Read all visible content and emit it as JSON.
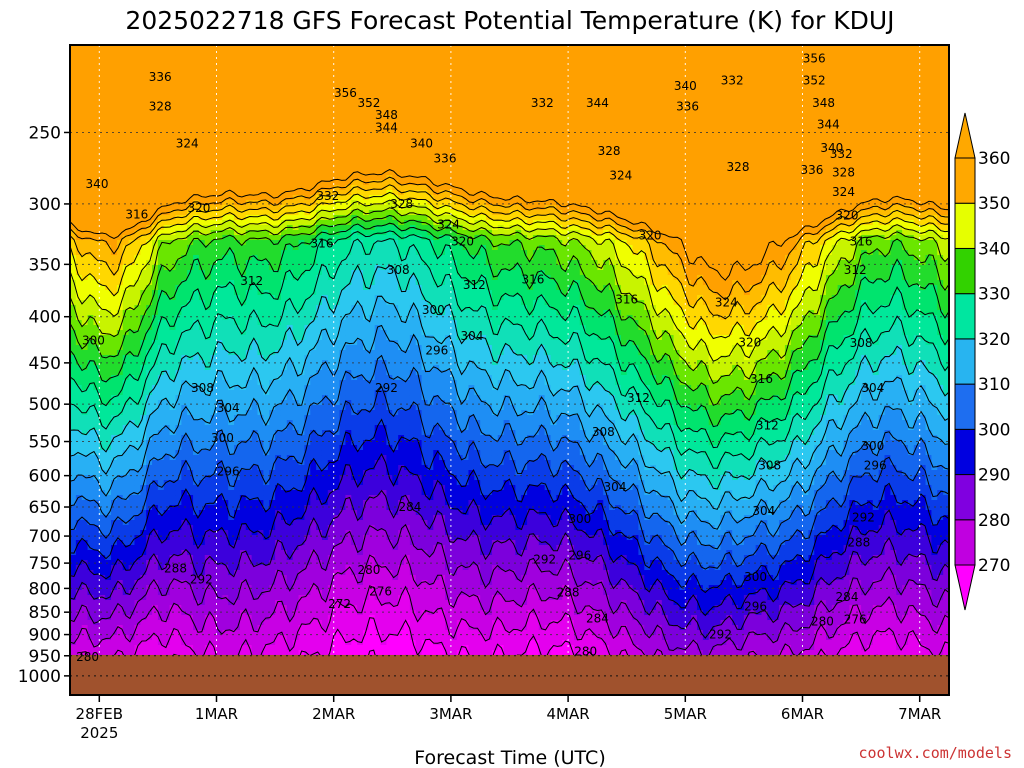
{
  "chart_data": {
    "type": "contour",
    "title": "2025022718 GFS Forecast Potential Temperature (K) for KDUJ",
    "xlabel": "Forecast Time (UTC)",
    "ylabel": "",
    "x_ticks": [
      "28FEB",
      "1MAR",
      "2MAR",
      "3MAR",
      "4MAR",
      "5MAR",
      "6MAR",
      "7MAR"
    ],
    "x_tick_year": "2025",
    "x_range_days": [
      -0.25,
      7.25
    ],
    "y_ticks": [
      250,
      300,
      350,
      400,
      450,
      500,
      550,
      600,
      650,
      700,
      750,
      800,
      850,
      900,
      950,
      1000
    ],
    "y_range": [
      1050,
      200
    ],
    "y_scale": "log-pressure",
    "surface_pressure": 948,
    "grid": true,
    "colorbar": {
      "levels": [
        270,
        280,
        290,
        300,
        310,
        320,
        330,
        340,
        350,
        360
      ],
      "colors": [
        "#ff00ff",
        "#c000e0",
        "#8000e0",
        "#0000e0",
        "#1e6ef0",
        "#28b4f0",
        "#00e6a0",
        "#32d200",
        "#e6ff00",
        "#ffa800"
      ]
    },
    "band_colors": [
      {
        "max": 276,
        "color": "#ff00ff"
      },
      {
        "max": 280,
        "color": "#e400ee"
      },
      {
        "max": 284,
        "color": "#c800e4"
      },
      {
        "max": 288,
        "color": "#a000de"
      },
      {
        "max": 292,
        "color": "#7c00dc"
      },
      {
        "max": 296,
        "color": "#3c00dc"
      },
      {
        "max": 300,
        "color": "#0000e0"
      },
      {
        "max": 304,
        "color": "#0a3ce8"
      },
      {
        "max": 308,
        "color": "#1466ee"
      },
      {
        "max": 312,
        "color": "#1e8ef4"
      },
      {
        "max": 316,
        "color": "#28b0f4"
      },
      {
        "max": 320,
        "color": "#2cc8f0"
      },
      {
        "max": 324,
        "color": "#10e0b8"
      },
      {
        "max": 328,
        "color": "#00e89a"
      },
      {
        "max": 332,
        "color": "#00e46e"
      },
      {
        "max": 336,
        "color": "#22dc2c"
      },
      {
        "max": 340,
        "color": "#6ae600"
      },
      {
        "max": 344,
        "color": "#c8f400"
      },
      {
        "max": 348,
        "color": "#f0ff00"
      },
      {
        "max": 352,
        "color": "#ffd800"
      },
      {
        "max": 356,
        "color": "#ffbc00"
      },
      {
        "max": 999,
        "color": "#ffa000"
      }
    ],
    "contour_labels": [
      {
        "v": "336",
        "d": 0.52,
        "p": 217
      },
      {
        "v": "328",
        "d": 0.52,
        "p": 234
      },
      {
        "v": "324",
        "d": 0.75,
        "p": 257
      },
      {
        "v": "340",
        "d": -0.02,
        "p": 285
      },
      {
        "v": "316",
        "d": 0.32,
        "p": 308
      },
      {
        "v": "320",
        "d": 0.85,
        "p": 303
      },
      {
        "v": "356",
        "d": 2.1,
        "p": 226
      },
      {
        "v": "352",
        "d": 2.3,
        "p": 232
      },
      {
        "v": "348",
        "d": 2.45,
        "p": 239
      },
      {
        "v": "344",
        "d": 2.45,
        "p": 247
      },
      {
        "v": "340",
        "d": 2.75,
        "p": 257
      },
      {
        "v": "336",
        "d": 2.95,
        "p": 267
      },
      {
        "v": "332",
        "d": 1.95,
        "p": 294
      },
      {
        "v": "328",
        "d": 2.58,
        "p": 300
      },
      {
        "v": "324",
        "d": 2.98,
        "p": 316
      },
      {
        "v": "320",
        "d": 3.1,
        "p": 330
      },
      {
        "v": "316",
        "d": 1.9,
        "p": 332
      },
      {
        "v": "312",
        "d": 1.3,
        "p": 365
      },
      {
        "v": "308",
        "d": 2.55,
        "p": 355
      },
      {
        "v": "312",
        "d": 3.2,
        "p": 369
      },
      {
        "v": "316",
        "d": 3.7,
        "p": 364
      },
      {
        "v": "316",
        "d": 4.5,
        "p": 383
      },
      {
        "v": "332",
        "d": 3.78,
        "p": 232
      },
      {
        "v": "344",
        "d": 4.25,
        "p": 232
      },
      {
        "v": "328",
        "d": 4.35,
        "p": 262
      },
      {
        "v": "324",
        "d": 4.45,
        "p": 279
      },
      {
        "v": "320",
        "d": 4.7,
        "p": 325
      },
      {
        "v": "340",
        "d": 5.0,
        "p": 222
      },
      {
        "v": "336",
        "d": 5.02,
        "p": 234
      },
      {
        "v": "332",
        "d": 5.4,
        "p": 219
      },
      {
        "v": "328",
        "d": 5.45,
        "p": 273
      },
      {
        "v": "324",
        "d": 5.35,
        "p": 386
      },
      {
        "v": "320",
        "d": 5.55,
        "p": 427
      },
      {
        "v": "356",
        "d": 6.1,
        "p": 207
      },
      {
        "v": "352",
        "d": 6.1,
        "p": 219
      },
      {
        "v": "348",
        "d": 6.18,
        "p": 232
      },
      {
        "v": "344",
        "d": 6.22,
        "p": 245
      },
      {
        "v": "340",
        "d": 6.25,
        "p": 260
      },
      {
        "v": "336",
        "d": 6.08,
        "p": 275
      },
      {
        "v": "332",
        "d": 6.33,
        "p": 264
      },
      {
        "v": "328",
        "d": 6.35,
        "p": 277
      },
      {
        "v": "324",
        "d": 6.35,
        "p": 291
      },
      {
        "v": "320",
        "d": 6.38,
        "p": 309
      },
      {
        "v": "316",
        "d": 6.5,
        "p": 330
      },
      {
        "v": "312",
        "d": 6.45,
        "p": 355
      },
      {
        "v": "308",
        "d": 6.5,
        "p": 428
      },
      {
        "v": "304",
        "d": 6.6,
        "p": 480
      },
      {
        "v": "300",
        "d": 6.6,
        "p": 556
      },
      {
        "v": "296",
        "d": 6.62,
        "p": 585
      },
      {
        "v": "292",
        "d": 6.52,
        "p": 668
      },
      {
        "v": "288",
        "d": 6.48,
        "p": 712
      },
      {
        "v": "284",
        "d": 6.38,
        "p": 818
      },
      {
        "v": "280",
        "d": 6.17,
        "p": 870
      },
      {
        "v": "276",
        "d": 6.45,
        "p": 866
      },
      {
        "v": "300",
        "d": -0.05,
        "p": 425
      },
      {
        "v": "308",
        "d": 0.88,
        "p": 480
      },
      {
        "v": "304",
        "d": 1.1,
        "p": 505
      },
      {
        "v": "300",
        "d": 1.05,
        "p": 545
      },
      {
        "v": "296",
        "d": 1.1,
        "p": 594
      },
      {
        "v": "288",
        "d": 0.65,
        "p": 760
      },
      {
        "v": "292",
        "d": 0.87,
        "p": 782
      },
      {
        "v": "300",
        "d": 2.85,
        "p": 393
      },
      {
        "v": "304",
        "d": 3.18,
        "p": 420
      },
      {
        "v": "296",
        "d": 2.88,
        "p": 436
      },
      {
        "v": "292",
        "d": 2.45,
        "p": 480
      },
      {
        "v": "284",
        "d": 2.65,
        "p": 650
      },
      {
        "v": "280",
        "d": 2.3,
        "p": 763
      },
      {
        "v": "276",
        "d": 2.4,
        "p": 806
      },
      {
        "v": "272",
        "d": 2.05,
        "p": 832
      },
      {
        "v": "312",
        "d": 4.6,
        "p": 492
      },
      {
        "v": "308",
        "d": 4.3,
        "p": 537
      },
      {
        "v": "304",
        "d": 4.4,
        "p": 618
      },
      {
        "v": "300",
        "d": 4.1,
        "p": 670
      },
      {
        "v": "296",
        "d": 4.1,
        "p": 736
      },
      {
        "v": "292",
        "d": 3.8,
        "p": 743
      },
      {
        "v": "288",
        "d": 4.0,
        "p": 808
      },
      {
        "v": "284",
        "d": 4.25,
        "p": 864
      },
      {
        "v": "280",
        "d": 4.15,
        "p": 940
      },
      {
        "v": "316",
        "d": 5.65,
        "p": 469
      },
      {
        "v": "312",
        "d": 5.7,
        "p": 528
      },
      {
        "v": "308",
        "d": 5.72,
        "p": 585
      },
      {
        "v": "304",
        "d": 5.67,
        "p": 657
      },
      {
        "v": "300",
        "d": 5.6,
        "p": 777
      },
      {
        "v": "296",
        "d": 5.6,
        "p": 838
      },
      {
        "v": "292",
        "d": 5.3,
        "p": 900
      },
      {
        "v": "280",
        "d": -0.1,
        "p": 953
      }
    ]
  },
  "credit": "coolwx.com/models"
}
